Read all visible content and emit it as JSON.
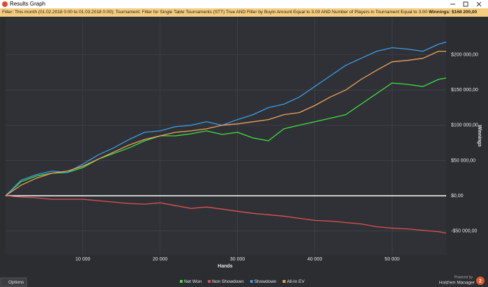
{
  "window": {
    "title": "Results Graph",
    "filter": "Filter: This month (01.02.2018 0:00 to 01.03.2018 0:00); Tournament: Filter for Single Table Tournaments (STT) True AND Filter by Buyin Amount Equal to 3.00 AND Number of Players in Tournament Equal to 3.00",
    "winnings": "Winnings: $168 200,00",
    "options_button": "Options",
    "powered_by": "Powered by",
    "brand": "Hold'em Manager",
    "brand_version": "2"
  },
  "chart_data": {
    "type": "line",
    "xlabel": "Hands",
    "ylabel": "Winnings",
    "x": [
      0,
      2000,
      4000,
      6000,
      8000,
      10000,
      12000,
      14000,
      16000,
      18000,
      20000,
      22000,
      24000,
      26000,
      28000,
      30000,
      32000,
      34000,
      36000,
      38000,
      40000,
      42000,
      44000,
      46000,
      48000,
      50000,
      52000,
      54000,
      56000,
      57000
    ],
    "series": [
      {
        "name": "Net Won",
        "color": "#3fe03f",
        "values": [
          0,
          20000,
          28000,
          32000,
          33000,
          40000,
          52000,
          60000,
          68000,
          78000,
          85000,
          85000,
          88000,
          92000,
          87000,
          90000,
          82000,
          78000,
          95000,
          100000,
          105000,
          110000,
          115000,
          130000,
          145000,
          160000,
          158000,
          155000,
          165000,
          167000
        ]
      },
      {
        "name": "Non Showdown",
        "color": "#e05252",
        "values": [
          0,
          -2000,
          -3000,
          -5000,
          -5000,
          -5000,
          -7000,
          -9000,
          -11000,
          -12000,
          -10000,
          -14000,
          -18000,
          -16000,
          -19000,
          -22000,
          -25000,
          -27000,
          -29000,
          -32000,
          -35000,
          -36000,
          -38000,
          -40000,
          -44000,
          -46000,
          -47000,
          -49000,
          -51000,
          -53000
        ]
      },
      {
        "name": "Showdown",
        "color": "#3b9de3",
        "values": [
          0,
          22000,
          30000,
          35000,
          33000,
          45000,
          58000,
          68000,
          80000,
          90000,
          92000,
          98000,
          100000,
          105000,
          100000,
          108000,
          115000,
          125000,
          130000,
          140000,
          155000,
          170000,
          185000,
          195000,
          205000,
          210000,
          208000,
          205000,
          215000,
          218000
        ]
      },
      {
        "name": "All-In EV",
        "color": "#f2a155",
        "values": [
          0,
          15000,
          25000,
          32000,
          35000,
          42000,
          52000,
          62000,
          72000,
          80000,
          85000,
          90000,
          92000,
          95000,
          100000,
          102000,
          105000,
          108000,
          115000,
          118000,
          128000,
          140000,
          150000,
          165000,
          178000,
          190000,
          192000,
          195000,
          205000,
          205000
        ]
      }
    ],
    "xlim": [
      0,
      57000
    ],
    "xticks": [
      {
        "value": 10000,
        "label": "10 000"
      },
      {
        "value": 20000,
        "label": "20 000"
      },
      {
        "value": 30000,
        "label": "30 000"
      },
      {
        "value": 40000,
        "label": "40 000"
      },
      {
        "value": 50000,
        "label": "50 000"
      }
    ],
    "ylim": [
      -84000,
      253000
    ],
    "yticks": [
      {
        "value": -50000,
        "label": "-$50 000,00"
      },
      {
        "value": 0,
        "label": "$0,00"
      },
      {
        "value": 50000,
        "label": "$50 000,00"
      },
      {
        "value": 100000,
        "label": "$100 000,00"
      },
      {
        "value": 150000,
        "label": "$150 000,00"
      },
      {
        "value": 200000,
        "label": "$200 000,00"
      }
    ],
    "grid": true,
    "legend": "bottom"
  }
}
